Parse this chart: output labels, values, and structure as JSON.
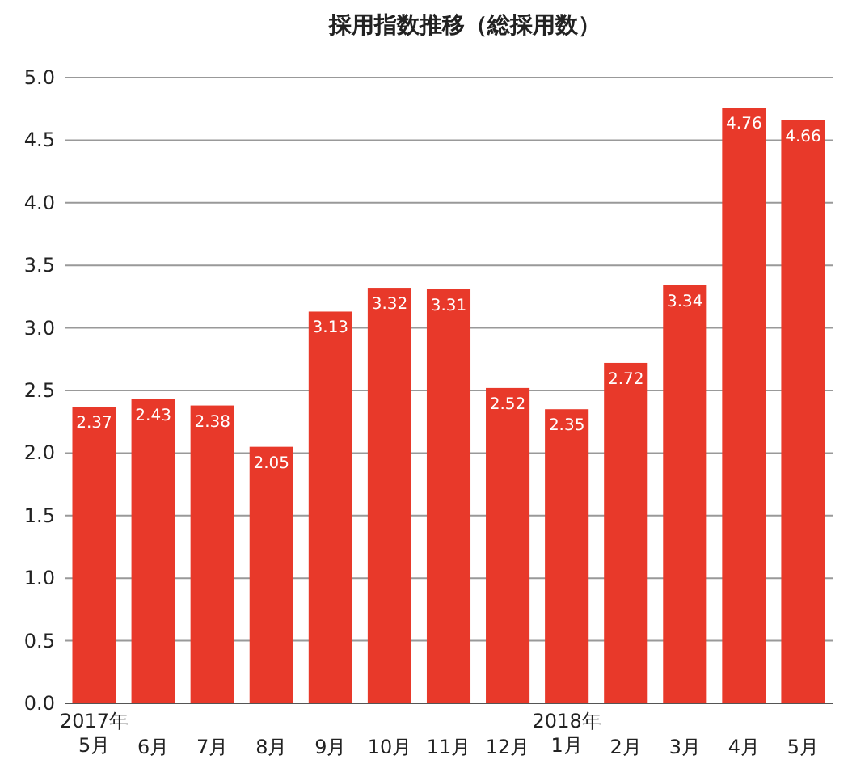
{
  "chart_data": {
    "type": "bar",
    "title": "採用指数推移（総採用数）",
    "categories": [
      "2017年\n5月",
      "6月",
      "7月",
      "8月",
      "9月",
      "10月",
      "11月",
      "12月",
      "2018年\n1月",
      "2月",
      "3月",
      "4月",
      "5月"
    ],
    "values": [
      2.37,
      2.43,
      2.38,
      2.05,
      3.13,
      3.32,
      3.31,
      2.52,
      2.35,
      2.72,
      3.34,
      4.76,
      4.66
    ],
    "color": "#e8392a",
    "data_labels": true,
    "grid": "y",
    "ylim": [
      0,
      5
    ],
    "yticks": [
      {
        "value": 0,
        "label": "0.0"
      },
      {
        "value": 0.5,
        "label": "0.5"
      },
      {
        "value": 1,
        "label": "1.0"
      },
      {
        "value": 1.5,
        "label": "1.5"
      },
      {
        "value": 2,
        "label": "2.0"
      },
      {
        "value": 2.5,
        "label": "2.5"
      },
      {
        "value": 3,
        "label": "3.0"
      },
      {
        "value": 3.5,
        "label": "3.5"
      },
      {
        "value": 4,
        "label": "4.0"
      },
      {
        "value": 4.5,
        "label": "4.5"
      },
      {
        "value": 5,
        "label": "5.0"
      }
    ]
  }
}
